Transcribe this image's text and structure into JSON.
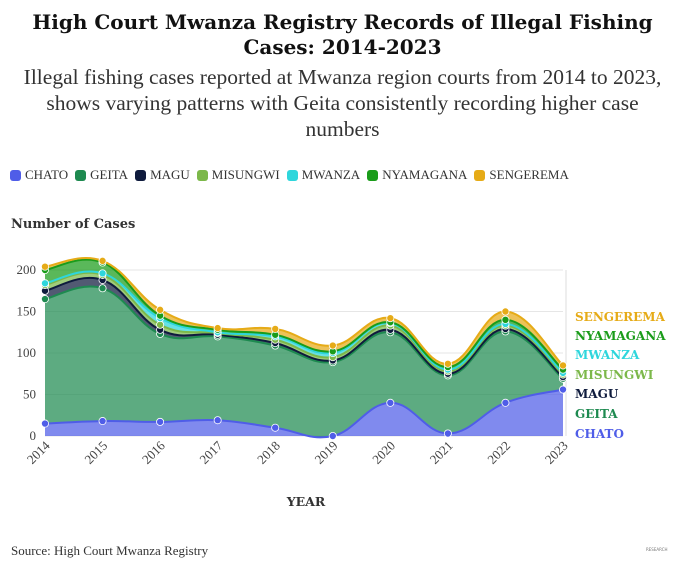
{
  "chart_data": {
    "type": "area",
    "stacked": true,
    "title": "High Court Mwanza Registry Records of Illegal Fishing Cases: 2014-2023",
    "subtitle": "Illegal fishing cases reported at Mwanza region courts from 2014 to 2023, shows varying patterns with Geita consistently recording higher case numbers",
    "xlabel": "YEAR",
    "ylabel": "Number of Cases",
    "ylim": [
      0,
      210
    ],
    "yticks": [
      "0",
      "50",
      "100",
      "150",
      "200"
    ],
    "categories": [
      "2014",
      "2015",
      "2016",
      "2017",
      "2018",
      "2019",
      "2020",
      "2021",
      "2022",
      "2023"
    ],
    "series": [
      {
        "name": "CHATO",
        "color": "#4f5de8",
        "values": [
          15,
          18,
          17,
          19,
          10,
          0,
          40,
          3,
          40,
          56
        ]
      },
      {
        "name": "GEITA",
        "color": "#1e8a50",
        "values": [
          150,
          160,
          106,
          101,
          99,
          89,
          85,
          70,
          86,
          13
        ]
      },
      {
        "name": "MAGU",
        "color": "#0f1b3d",
        "values": [
          10,
          10,
          5,
          2,
          3,
          2,
          3,
          2,
          3,
          2
        ]
      },
      {
        "name": "MISUNGWI",
        "color": "#7cb84a",
        "values": [
          7,
          6,
          6,
          2,
          4,
          4,
          5,
          3,
          4,
          3
        ]
      },
      {
        "name": "MWANZA",
        "color": "#2ed6dc",
        "values": [
          2,
          2,
          8,
          1,
          4,
          5,
          3,
          2,
          2,
          2
        ]
      },
      {
        "name": "NYAMAGANA",
        "color": "#1a9c1a",
        "values": [
          16,
          13,
          3,
          3,
          2,
          2,
          1,
          3,
          5,
          4
        ]
      },
      {
        "name": "SENGEREMA",
        "color": "#e6ab17",
        "values": [
          4,
          2,
          7,
          2,
          7,
          7,
          5,
          4,
          10,
          5
        ]
      }
    ]
  },
  "source": "Source: High Court Mwanza Registry",
  "watermark": "RESEARCH"
}
